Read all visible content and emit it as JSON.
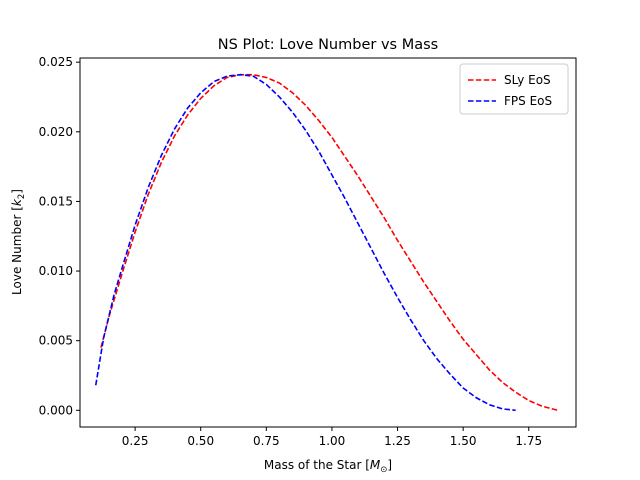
{
  "chart_data": {
    "type": "line",
    "title": "NS Plot: Love Number vs Mass",
    "xlabel_main": "Mass of the Star [",
    "xlabel_sym": "M",
    "xlabel_sub": "⊙",
    "xlabel_close": "]",
    "ylabel_main": "Love Number [",
    "ylabel_sym": "k",
    "ylabel_sub": "2",
    "ylabel_close": "]",
    "xlim": [
      0.04,
      1.93
    ],
    "ylim": [
      -0.0012,
      0.0253
    ],
    "x_ticks": [
      0.25,
      0.5,
      0.75,
      1.0,
      1.25,
      1.5,
      1.75
    ],
    "x_tick_labels": [
      "0.25",
      "0.50",
      "0.75",
      "1.00",
      "1.25",
      "1.50",
      "1.75"
    ],
    "y_ticks": [
      0.0,
      0.005,
      0.01,
      0.015,
      0.02,
      0.025
    ],
    "y_tick_labels": [
      "0.000",
      "0.005",
      "0.010",
      "0.015",
      "0.020",
      "0.025"
    ],
    "grid": false,
    "legend_position": "top-right",
    "series": [
      {
        "name": "SLy EoS",
        "color": "#ff0000",
        "dash": "dashed",
        "x": [
          0.12,
          0.15,
          0.2,
          0.25,
          0.3,
          0.35,
          0.4,
          0.45,
          0.5,
          0.55,
          0.6,
          0.65,
          0.7,
          0.75,
          0.8,
          0.85,
          0.9,
          0.95,
          1.0,
          1.05,
          1.1,
          1.15,
          1.2,
          1.25,
          1.3,
          1.35,
          1.4,
          1.45,
          1.5,
          1.55,
          1.6,
          1.65,
          1.7,
          1.75,
          1.8,
          1.86
        ],
        "y": [
          0.0045,
          0.0067,
          0.0098,
          0.0128,
          0.0155,
          0.0178,
          0.0197,
          0.0212,
          0.0224,
          0.0233,
          0.0239,
          0.0241,
          0.0241,
          0.0239,
          0.0235,
          0.0228,
          0.0219,
          0.0208,
          0.0196,
          0.0182,
          0.0168,
          0.0153,
          0.0138,
          0.0122,
          0.0107,
          0.0092,
          0.0078,
          0.0064,
          0.0051,
          0.004,
          0.0029,
          0.002,
          0.0013,
          0.0007,
          0.0003,
          0.0
        ]
      },
      {
        "name": "FPS EoS",
        "color": "#0000ff",
        "dash": "dashed",
        "x": [
          0.1,
          0.13,
          0.17,
          0.2,
          0.25,
          0.3,
          0.35,
          0.4,
          0.45,
          0.5,
          0.55,
          0.6,
          0.65,
          0.7,
          0.75,
          0.8,
          0.85,
          0.9,
          0.95,
          1.0,
          1.05,
          1.1,
          1.15,
          1.2,
          1.25,
          1.3,
          1.35,
          1.4,
          1.45,
          1.5,
          1.55,
          1.6,
          1.65,
          1.7
        ],
        "y": [
          0.0018,
          0.0052,
          0.0083,
          0.0102,
          0.0133,
          0.016,
          0.0183,
          0.0202,
          0.0217,
          0.0228,
          0.0236,
          0.024,
          0.0241,
          0.024,
          0.0234,
          0.0225,
          0.0214,
          0.0201,
          0.0186,
          0.0169,
          0.0152,
          0.0134,
          0.0116,
          0.0098,
          0.0081,
          0.0065,
          0.005,
          0.0037,
          0.0026,
          0.0016,
          0.0009,
          0.0004,
          0.0001,
          0.0
        ]
      }
    ]
  }
}
